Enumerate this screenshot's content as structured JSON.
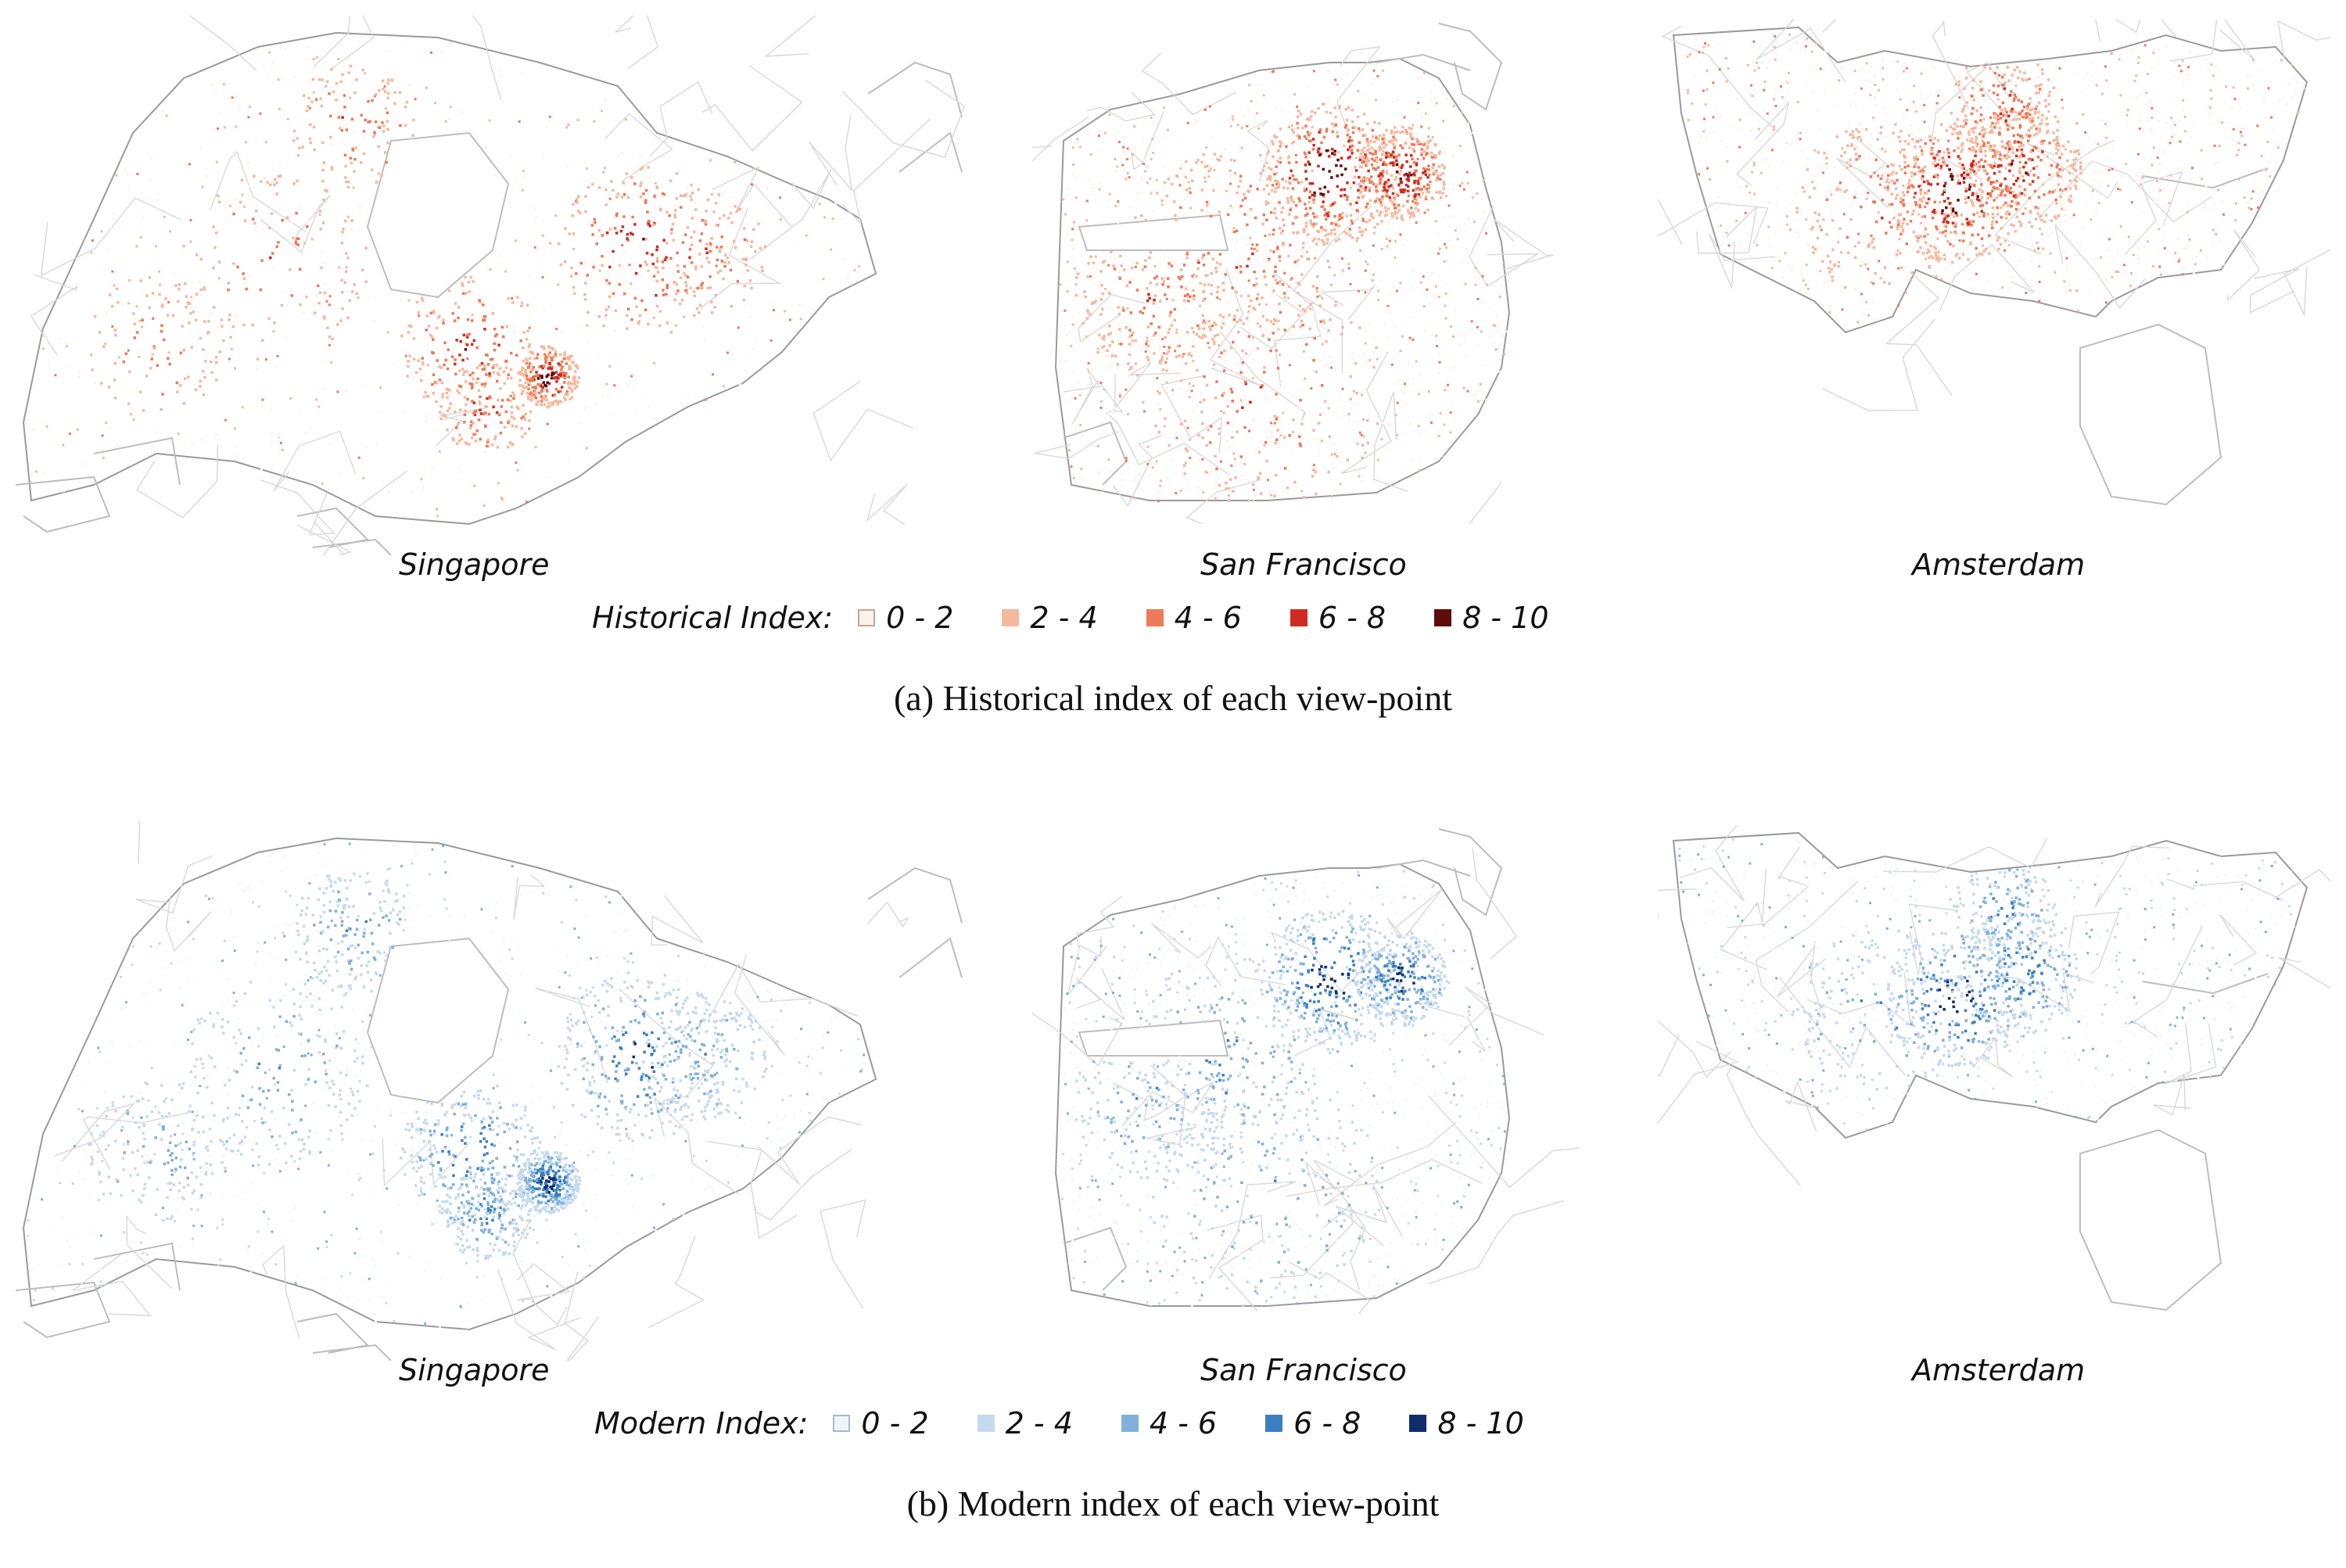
{
  "panels": [
    {
      "id": "a",
      "legend_title": "Historical Index:",
      "caption": "(a) Historical index of each view-point",
      "bins": [
        {
          "label": "0 - 2",
          "color": "#fdf1ec",
          "border": "#c9a497"
        },
        {
          "label": "2 - 4",
          "color": "#f6b89c"
        },
        {
          "label": "4 - 6",
          "color": "#ee7a57"
        },
        {
          "label": "6 - 8",
          "color": "#cf2b20"
        },
        {
          "label": "8 - 10",
          "color": "#5e0c0c"
        }
      ],
      "cities": [
        {
          "name": "Singapore",
          "density": 0.55
        },
        {
          "name": "San Francisco",
          "density": 0.85
        },
        {
          "name": "Amsterdam",
          "density": 0.8
        }
      ]
    },
    {
      "id": "b",
      "legend_title": "Modern Index:",
      "caption": "(b) Modern index of each view-point",
      "bins": [
        {
          "label": "0 - 2",
          "color": "#f1f5fb",
          "border": "#a9b8cc"
        },
        {
          "label": "2 - 4",
          "color": "#c6d9ee"
        },
        {
          "label": "4 - 6",
          "color": "#7fb1da"
        },
        {
          "label": "6 - 8",
          "color": "#3a7fc1"
        },
        {
          "label": "8 - 10",
          "color": "#0f2d6e"
        }
      ],
      "cities": [
        {
          "name": "Singapore",
          "density": 0.9
        },
        {
          "name": "San Francisco",
          "density": 0.8
        },
        {
          "name": "Amsterdam",
          "density": 0.7
        }
      ]
    }
  ]
}
